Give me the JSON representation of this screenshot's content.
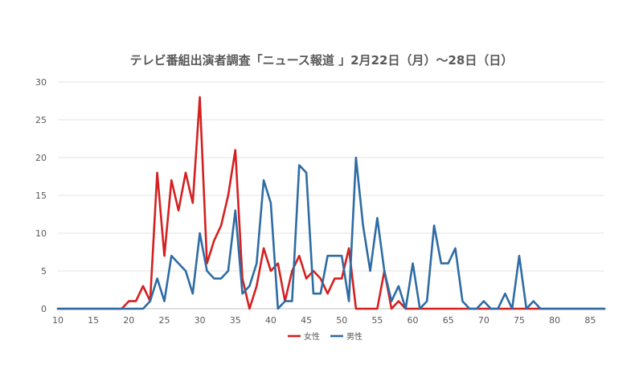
{
  "chart_data": {
    "type": "line",
    "title": "テレビ番組出演者調査「ニュース報道 」2月22日（月）～28日（日）",
    "xlabel": "",
    "ylabel": "",
    "xlim": [
      10,
      87
    ],
    "ylim": [
      0,
      30
    ],
    "x_ticks": [
      10,
      15,
      20,
      25,
      30,
      35,
      40,
      45,
      50,
      55,
      60,
      65,
      70,
      75,
      80,
      85
    ],
    "y_ticks": [
      0,
      5,
      10,
      15,
      20,
      25,
      30
    ],
    "grid": "horizontal",
    "legend_position": "bottom",
    "x": [
      10,
      11,
      12,
      13,
      14,
      15,
      16,
      17,
      18,
      19,
      20,
      21,
      22,
      23,
      24,
      25,
      26,
      27,
      28,
      29,
      30,
      31,
      32,
      33,
      34,
      35,
      36,
      37,
      38,
      39,
      40,
      41,
      42,
      43,
      44,
      45,
      46,
      47,
      48,
      49,
      50,
      51,
      52,
      53,
      54,
      55,
      56,
      57,
      58,
      59,
      60,
      61,
      62,
      63,
      64,
      65,
      66,
      67,
      68,
      69,
      70,
      71,
      72,
      73,
      74,
      75,
      76,
      77,
      78,
      79,
      80,
      81,
      82,
      83,
      84,
      85,
      86,
      87
    ],
    "series": [
      {
        "name": "女性",
        "color": "#d42020",
        "values": [
          0,
          0,
          0,
          0,
          0,
          0,
          0,
          0,
          0,
          0,
          1,
          1,
          3,
          1,
          18,
          7,
          17,
          13,
          18,
          14,
          28,
          6,
          9,
          11,
          15,
          21,
          4,
          0,
          3,
          8,
          5,
          6,
          1,
          5,
          7,
          4,
          5,
          4,
          2,
          4,
          4,
          8,
          0,
          0,
          0,
          0,
          5,
          0,
          1,
          0,
          0,
          0,
          0,
          0,
          0,
          0,
          0,
          0,
          0,
          0,
          0,
          0,
          0,
          0,
          0,
          0,
          0,
          0,
          0,
          0,
          0,
          0,
          0,
          0,
          0,
          0,
          0,
          0
        ]
      },
      {
        "name": "男性",
        "color": "#2e6ca4",
        "values": [
          0,
          0,
          0,
          0,
          0,
          0,
          0,
          0,
          0,
          0,
          0,
          0,
          0,
          1,
          4,
          1,
          7,
          6,
          5,
          2,
          10,
          5,
          4,
          4,
          5,
          13,
          2,
          3,
          6,
          17,
          14,
          0,
          1,
          1,
          19,
          18,
          2,
          2,
          7,
          7,
          7,
          1,
          20,
          11,
          5,
          12,
          5,
          1,
          3,
          0,
          6,
          0,
          1,
          11,
          6,
          6,
          8,
          1,
          0,
          0,
          1,
          0,
          0,
          2,
          0,
          7,
          0,
          1,
          0,
          0,
          0,
          0,
          0,
          0,
          0,
          0,
          0,
          0
        ]
      }
    ]
  }
}
